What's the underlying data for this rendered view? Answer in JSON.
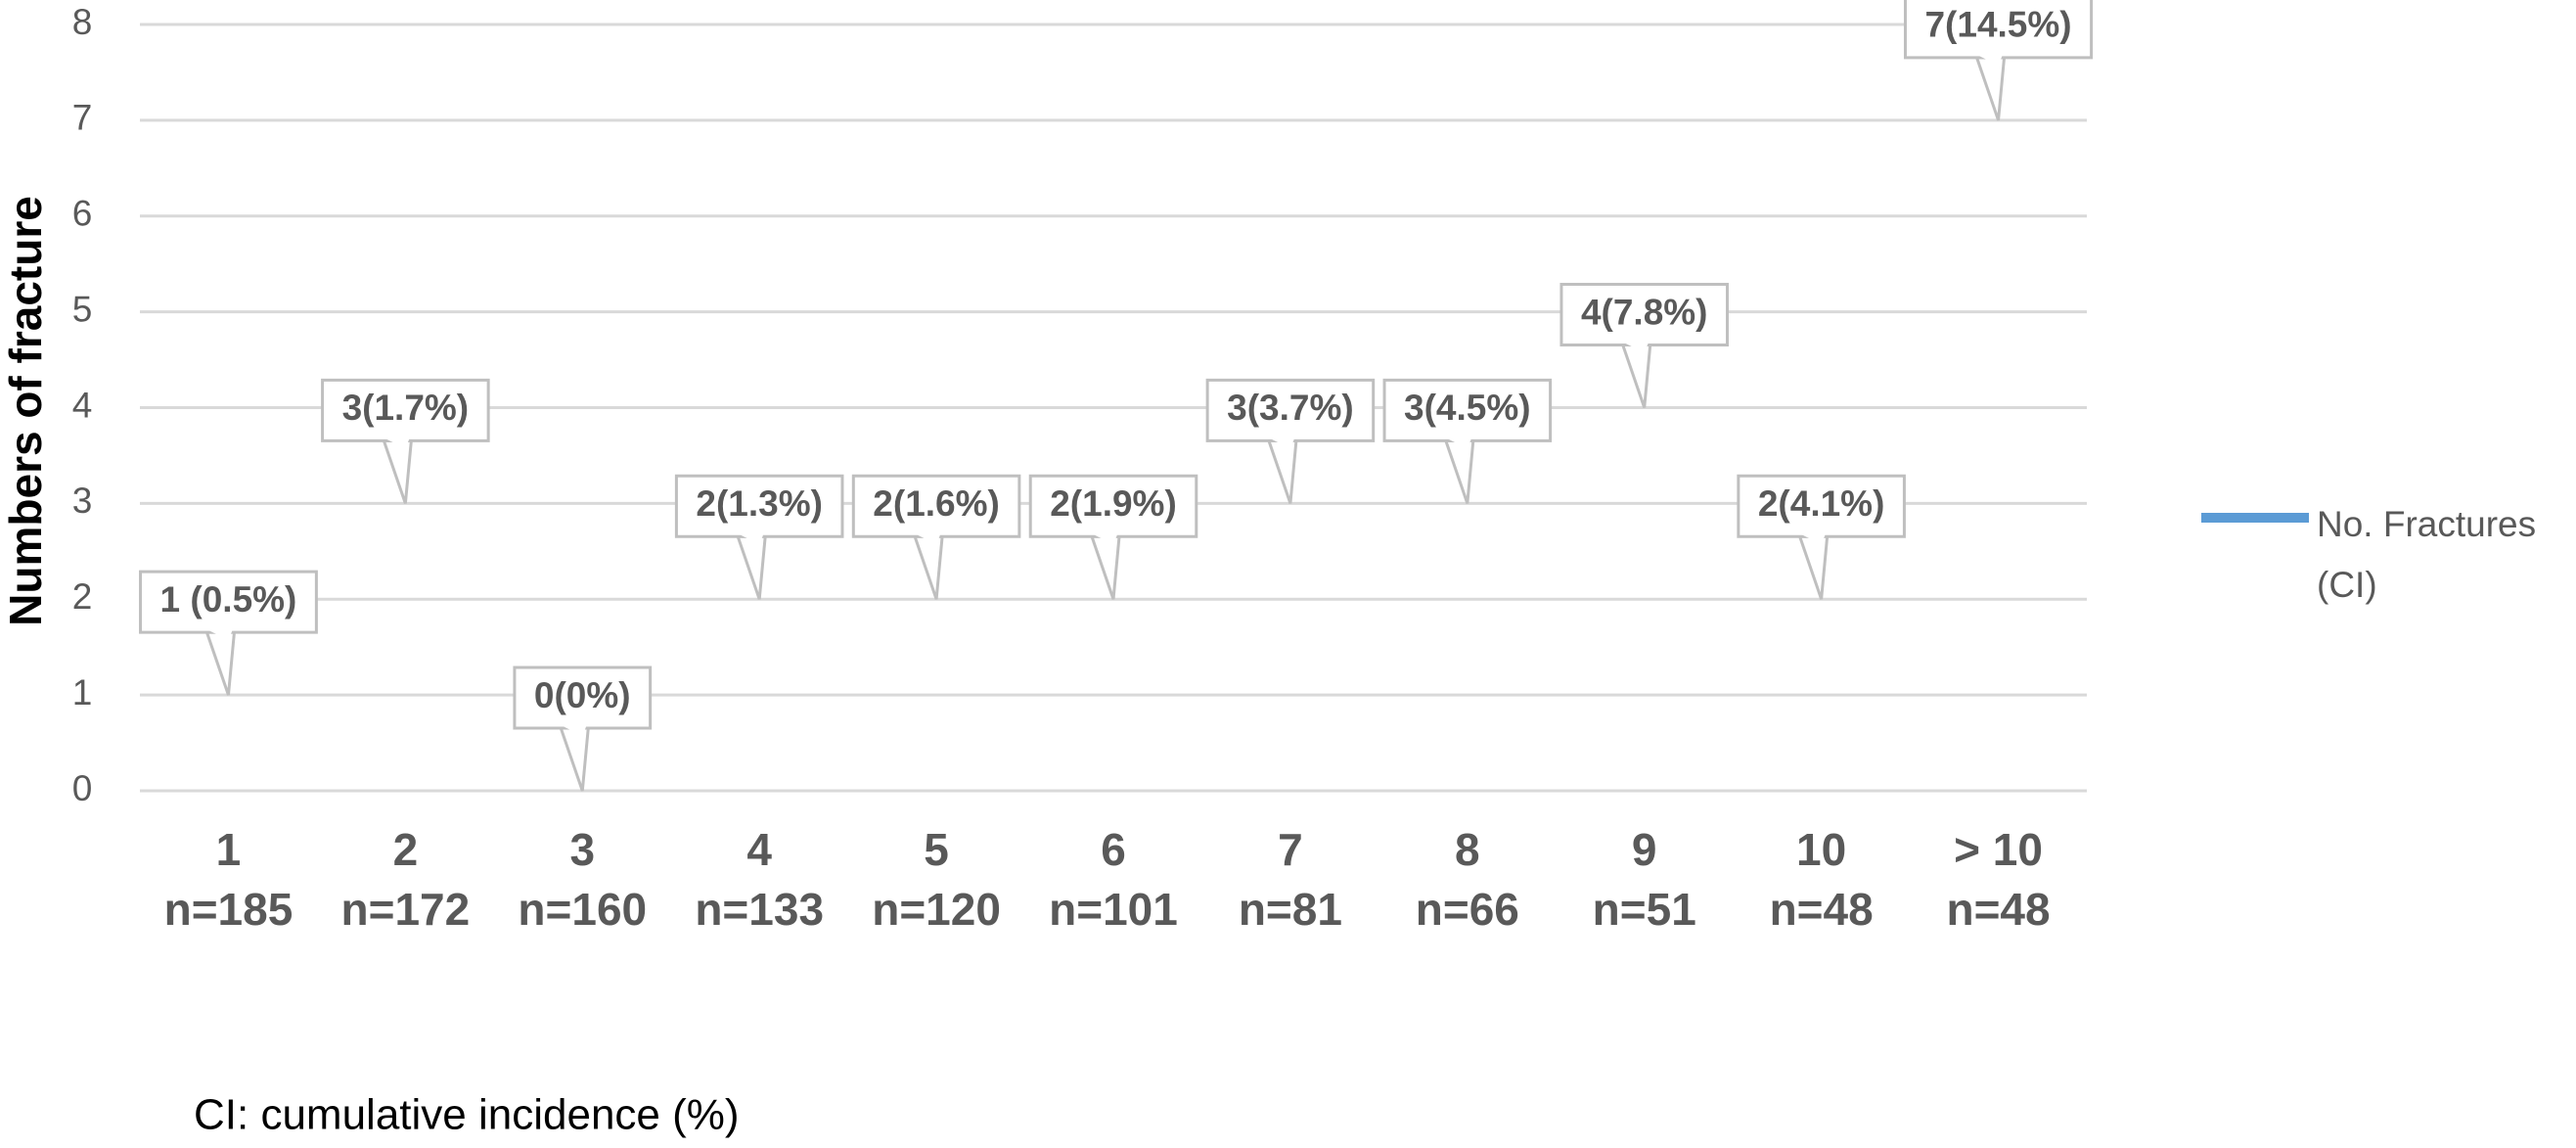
{
  "chart_data": {
    "type": "line",
    "y_label": "Numbers of fracture",
    "categories": [
      "1",
      "2",
      "3",
      "4",
      "5",
      "6",
      "7",
      "8",
      "9",
      "10",
      "> 10"
    ],
    "category_sublabels": [
      "n=185",
      "n=172",
      "n=160",
      "n=133",
      "n=120",
      "n=101",
      "n=81",
      "n=66",
      "n=51",
      "n=48",
      "n=48"
    ],
    "series": [
      {
        "name": "No. Fractures (CI)",
        "color": "#5b9bd5",
        "values": [
          1,
          3,
          0,
          2,
          2,
          2,
          3,
          3,
          4,
          2,
          7
        ],
        "value_labels": [
          "1 (0.5%)",
          "3(1.7%)",
          "0(0%)",
          "2(1.3%)",
          "2(1.6%)",
          "2(1.9%)",
          "3(3.7%)",
          "3(4.5%)",
          "4(7.8%)",
          "2(4.1%)",
          "7(14.5%)"
        ]
      }
    ],
    "ylim": [
      0,
      8
    ],
    "yticks": [
      0,
      1,
      2,
      3,
      4,
      5,
      6,
      7,
      8
    ],
    "grid": true,
    "legend": "right",
    "footnote": "CI: cumulative incidence (%)"
  }
}
